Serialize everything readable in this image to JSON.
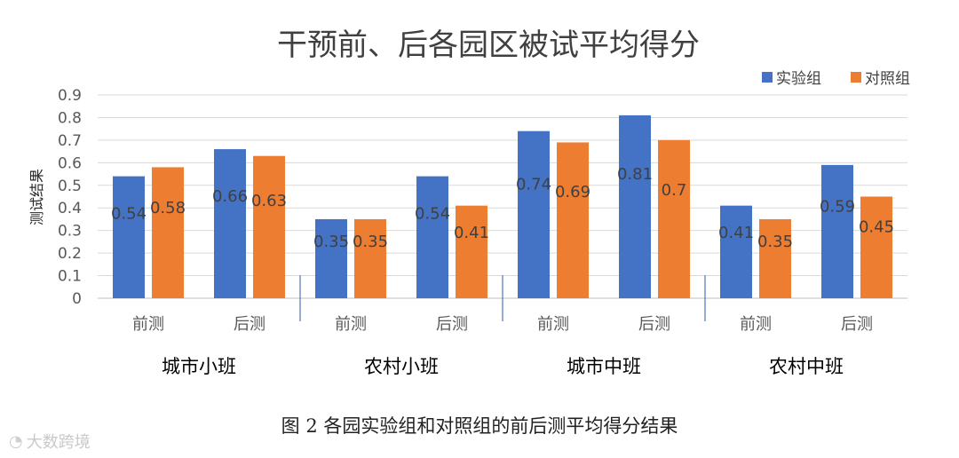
{
  "chart_data": {
    "type": "bar",
    "title": "干预前、后各园区被试平均得分",
    "ylabel": "测试结果",
    "xlabel": "",
    "ylim": [
      0,
      0.9
    ],
    "yticks": [
      "0",
      "0.1",
      "0.2",
      "0.3",
      "0.4",
      "0.5",
      "0.6",
      "0.7",
      "0.8",
      "0.9"
    ],
    "grid": true,
    "legend_position": "top-right",
    "groups": [
      "城市小班",
      "农村小班",
      "城市中班",
      "农村中班"
    ],
    "categories": [
      "前测",
      "后测",
      "前测",
      "后测",
      "前测",
      "后测",
      "前测",
      "后测"
    ],
    "series": [
      {
        "name": "实验组",
        "color": "#4472C4",
        "values": [
          0.54,
          0.66,
          0.35,
          0.54,
          0.74,
          0.81,
          0.41,
          0.59
        ],
        "labels": [
          "0.54",
          "0.66",
          "0.35",
          "0.54",
          "0.74",
          "0.81",
          "0.41",
          "0.59"
        ]
      },
      {
        "name": "对照组",
        "color": "#ED7D31",
        "values": [
          0.58,
          0.63,
          0.35,
          0.41,
          0.69,
          0.7,
          0.35,
          0.45
        ],
        "labels": [
          "0.58",
          "0.63",
          "0.35",
          "0.41",
          "0.69",
          "0.7",
          "0.35",
          "0.45"
        ]
      }
    ]
  },
  "caption": "图 2  各园实验组和对照组的前后测平均得分结果",
  "watermark": {
    "logo_icon": "weibo-logo-icon",
    "text": "大数跨境"
  }
}
